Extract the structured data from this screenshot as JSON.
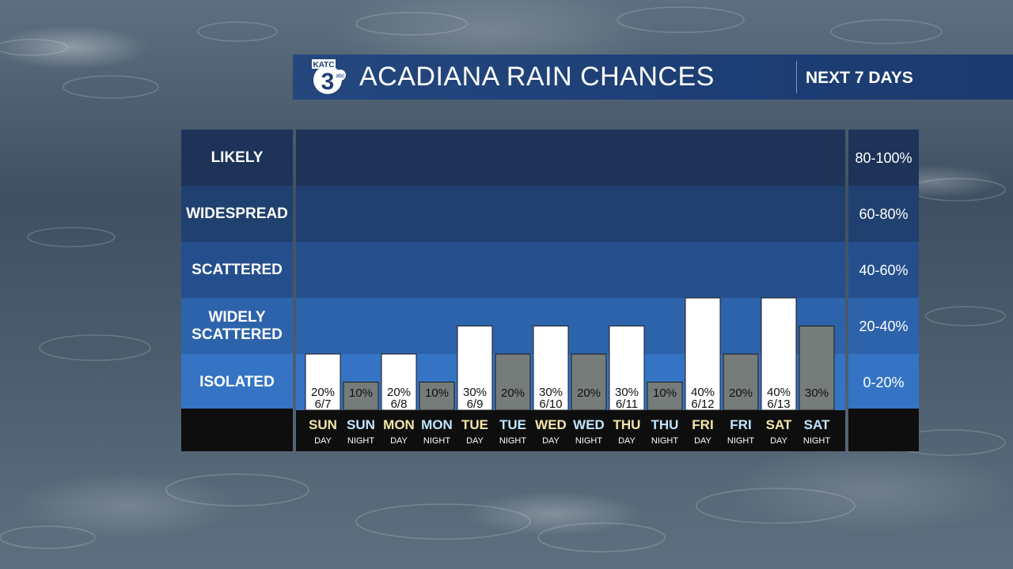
{
  "header": {
    "logo_text": "KATC 3 abc",
    "title": "ACADIANA RAIN CHANCES",
    "subtitle": "NEXT 7 DAYS"
  },
  "bands": [
    {
      "label": "LIKELY",
      "range": "80-100%",
      "color": "#1d3358"
    },
    {
      "label": "WIDESPREAD",
      "range": "60-80%",
      "color": "#20406f"
    },
    {
      "label": "SCATTERED",
      "range": "40-60%",
      "color": "#254f8c"
    },
    {
      "label": "WIDELY SCATTERED",
      "range": "20-40%",
      "color": "#2d63ab"
    },
    {
      "label": "ISOLATED",
      "range": "0-20%",
      "color": "#3574c4"
    }
  ],
  "colors": {
    "day_bar": "#ffffff",
    "night_bar": "#757c7a",
    "day_label": "#f3e6a6",
    "night_label": "#bfe6ff",
    "footer": "#0e0e0e"
  },
  "chart_data": {
    "type": "bar",
    "title": "ACADIANA RAIN CHANCES",
    "ylim": [
      0,
      100
    ],
    "bars": [
      {
        "day": "SUN",
        "period": "DAY",
        "date": "6/7",
        "value": 20,
        "label": "20%"
      },
      {
        "day": "SUN",
        "period": "NIGHT",
        "date": "",
        "value": 10,
        "label": "10%"
      },
      {
        "day": "MON",
        "period": "DAY",
        "date": "6/8",
        "value": 20,
        "label": "20%"
      },
      {
        "day": "MON",
        "period": "NIGHT",
        "date": "",
        "value": 10,
        "label": "10%"
      },
      {
        "day": "TUE",
        "period": "DAY",
        "date": "6/9",
        "value": 30,
        "label": "30%"
      },
      {
        "day": "TUE",
        "period": "NIGHT",
        "date": "",
        "value": 20,
        "label": "20%"
      },
      {
        "day": "WED",
        "period": "DAY",
        "date": "6/10",
        "value": 30,
        "label": "30%"
      },
      {
        "day": "WED",
        "period": "NIGHT",
        "date": "",
        "value": 20,
        "label": "20%"
      },
      {
        "day": "THU",
        "period": "DAY",
        "date": "6/11",
        "value": 30,
        "label": "30%"
      },
      {
        "day": "THU",
        "period": "NIGHT",
        "date": "",
        "value": 10,
        "label": "10%"
      },
      {
        "day": "FRI",
        "period": "DAY",
        "date": "6/12",
        "value": 40,
        "label": "40%"
      },
      {
        "day": "FRI",
        "period": "NIGHT",
        "date": "",
        "value": 20,
        "label": "20%"
      },
      {
        "day": "SAT",
        "period": "DAY",
        "date": "6/13",
        "value": 40,
        "label": "40%"
      },
      {
        "day": "SAT",
        "period": "NIGHT",
        "date": "",
        "value": 30,
        "label": "30%"
      }
    ]
  }
}
